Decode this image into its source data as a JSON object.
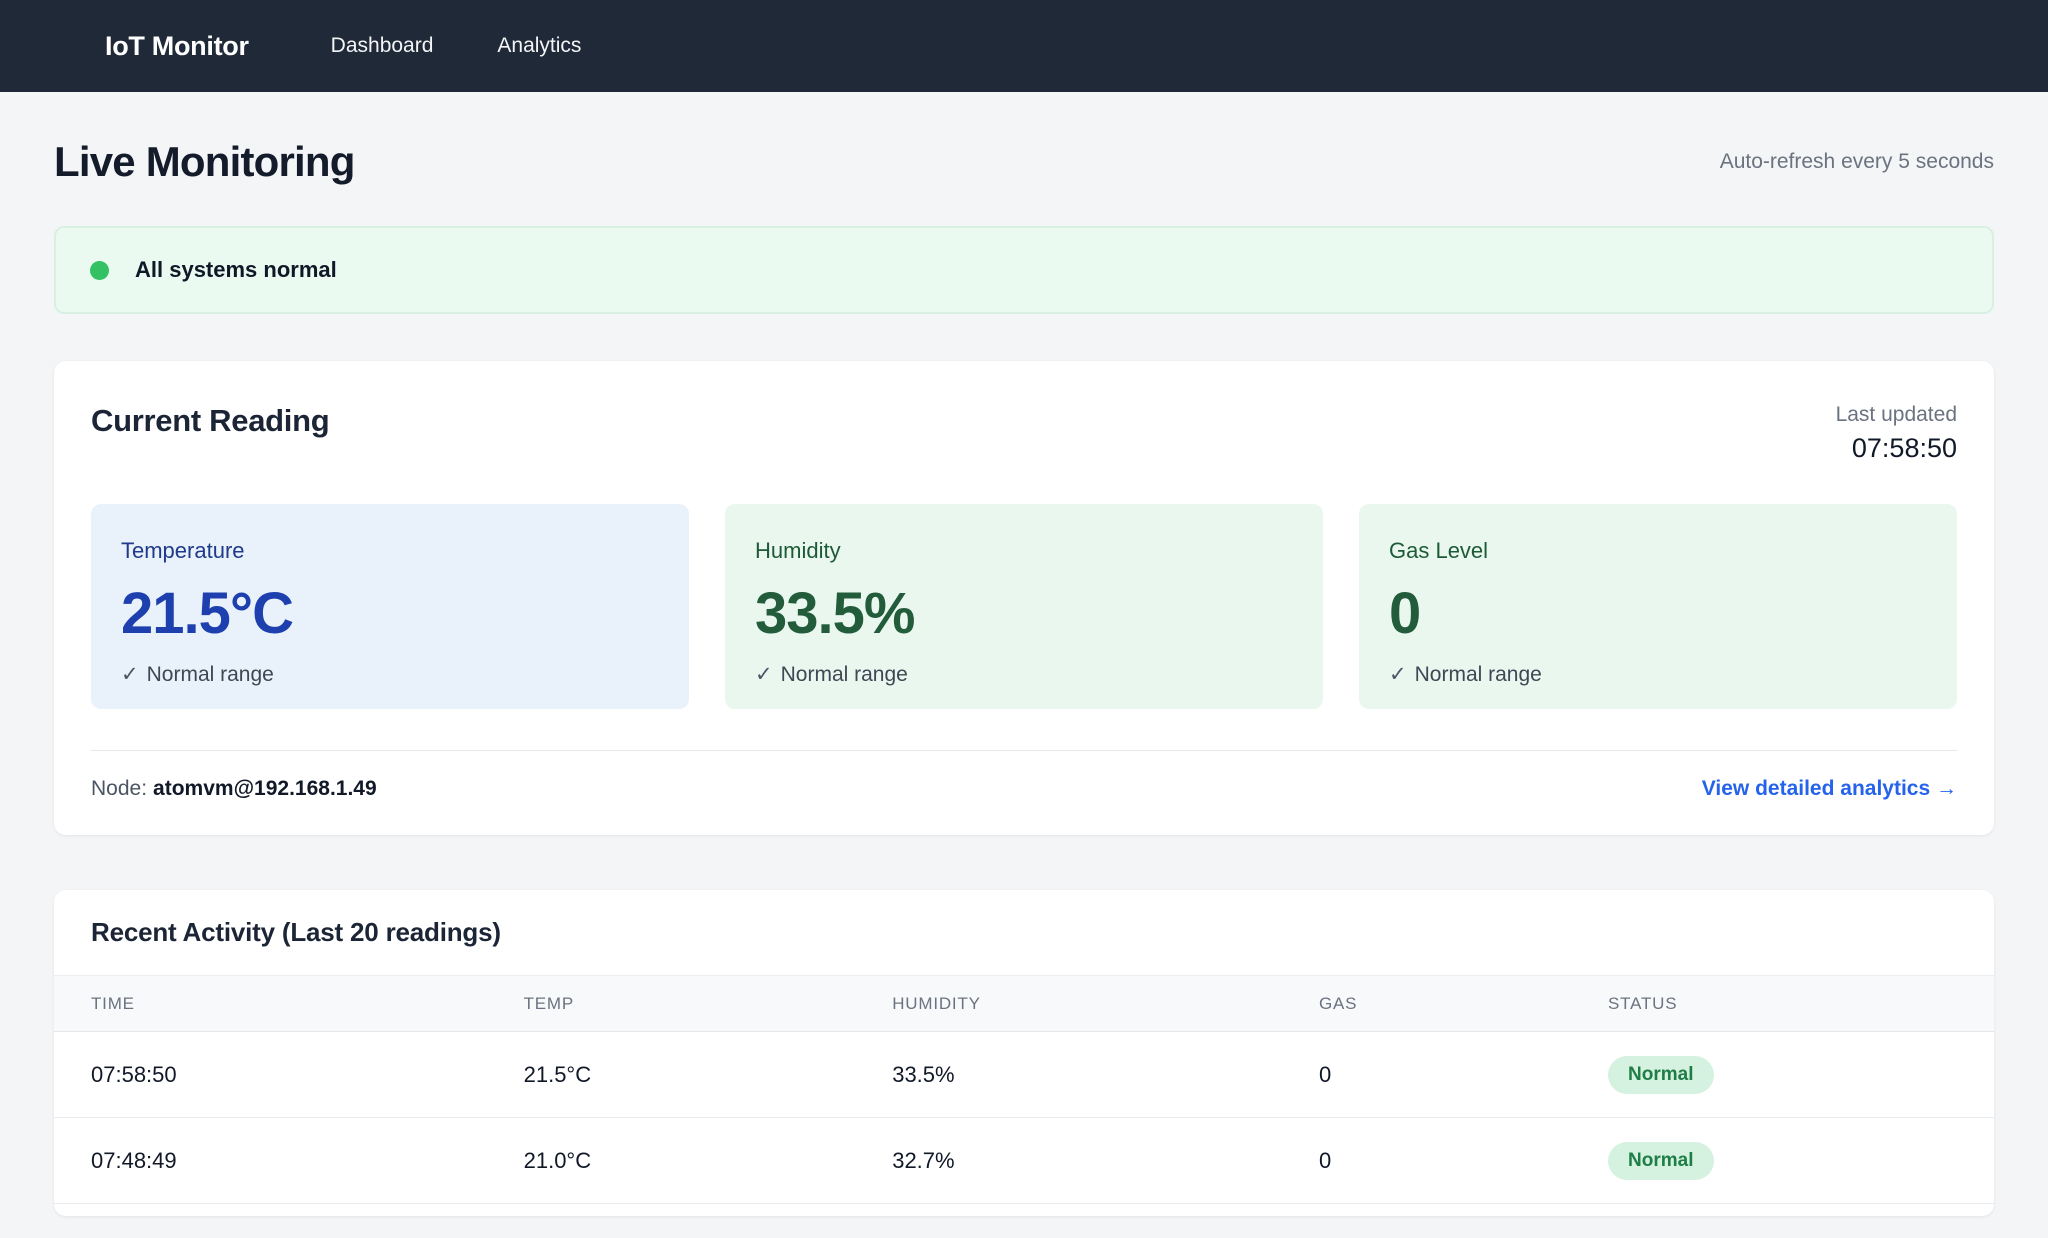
{
  "navbar": {
    "brand": "IoT Monitor",
    "links": [
      {
        "label": "Dashboard"
      },
      {
        "label": "Analytics"
      }
    ]
  },
  "header": {
    "title": "Live Monitoring",
    "refresh_note": "Auto-refresh every 5 seconds"
  },
  "status_banner": {
    "text": "All systems normal"
  },
  "current_reading": {
    "title": "Current Reading",
    "last_updated_label": "Last updated",
    "last_updated_time": "07:58:50",
    "metrics": [
      {
        "label": "Temperature",
        "value": "21.5°C",
        "check": "✓",
        "note": "Normal range",
        "accent": "#1e40af",
        "bg": "#e9f1fb"
      },
      {
        "label": "Humidity",
        "value": "33.5%",
        "check": "✓",
        "note": "Normal range",
        "accent": "#235c3b",
        "bg": "#e9f7ef"
      },
      {
        "label": "Gas Level",
        "value": "0",
        "check": "✓",
        "note": "Normal range",
        "accent": "#235c3b",
        "bg": "#e9f7ef"
      }
    ],
    "node_label": "Node:",
    "node_value": "atomvm@192.168.1.49",
    "analytics_link": "View detailed analytics →"
  },
  "recent_activity": {
    "title": "Recent Activity (Last 20 readings)",
    "columns": [
      "Time",
      "Temp",
      "Humidity",
      "Gas",
      "Status"
    ],
    "rows": [
      {
        "time": "07:58:50",
        "temp": "21.5°C",
        "humidity": "33.5%",
        "gas": "0",
        "status": "Normal"
      },
      {
        "time": "07:48:49",
        "temp": "21.0°C",
        "humidity": "32.7%",
        "gas": "0",
        "status": "Normal"
      }
    ]
  },
  "colors": {
    "navbar_bg": "#1f2937",
    "page_bg": "#f4f5f6",
    "banner_bg": "#eafaf0",
    "status_dot": "#34c163",
    "temperature_accent": "#1e40af",
    "green_accent": "#235c3b",
    "link_blue": "#2563eb",
    "badge_bg": "#d5f1df",
    "badge_text": "#1e7e46"
  }
}
